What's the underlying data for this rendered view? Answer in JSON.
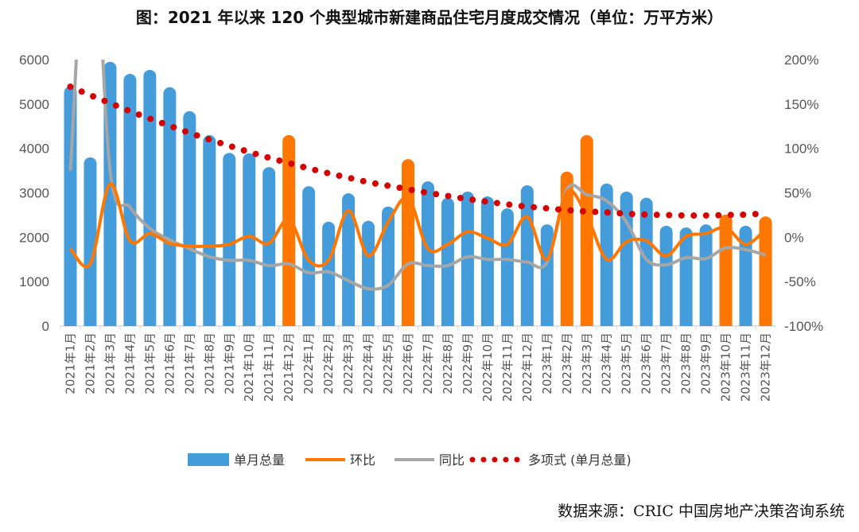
{
  "chart_data": {
    "type": "bar",
    "title": "图：2021 年以来 120 个典型城市新建商品住宅月度成交情况（单位：万平方米）",
    "categories": [
      "2021年1月",
      "2021年2月",
      "2021年3月",
      "2021年4月",
      "2021年5月",
      "2021年6月",
      "2021年7月",
      "2021年8月",
      "2021年9月",
      "2021年10月",
      "2021年11月",
      "2021年12月",
      "2022年1月",
      "2022年2月",
      "2022年3月",
      "2022年4月",
      "2022年5月",
      "2022年6月",
      "2022年7月",
      "2022年8月",
      "2022年9月",
      "2022年10月",
      "2022年11月",
      "2022年12月",
      "2023年1月",
      "2023年2月",
      "2023年3月",
      "2023年4月",
      "2023年5月",
      "2023年6月",
      "2023年7月",
      "2023年8月",
      "2023年9月",
      "2023年10月",
      "2023年11月",
      "2023年12月"
    ],
    "left_axis": {
      "ylim": [
        0,
        6000
      ],
      "ticks": [
        "0",
        "1000",
        "2000",
        "3000",
        "4000",
        "5000",
        "6000"
      ]
    },
    "right_axis": {
      "ylim": [
        -100,
        200
      ],
      "ticks": [
        "-100%",
        "-50%",
        "0%",
        "50%",
        "100%",
        "150%",
        "200%"
      ]
    },
    "highlighted_indices": [
      11,
      17,
      25,
      26,
      33,
      35
    ],
    "colors": {
      "bar": "#459cdb",
      "highlight": "#ff7700",
      "mom": "#ff7700",
      "yoy": "#a6a6a6",
      "trend": "#d40000"
    },
    "series": [
      {
        "name": "单月总量",
        "type": "bar",
        "axis": "left",
        "values": [
          5400,
          3800,
          5950,
          5680,
          5770,
          5380,
          4840,
          4300,
          3900,
          3890,
          3580,
          4300,
          3150,
          2350,
          2990,
          2370,
          2690,
          3760,
          3260,
          2890,
          3030,
          2920,
          2650,
          3170,
          2290,
          3480,
          4300,
          3210,
          3030,
          2890,
          2260,
          2220,
          2290,
          2510,
          2260,
          2470
        ]
      },
      {
        "name": "环比",
        "type": "line",
        "axis": "right",
        "values": [
          -13,
          -30,
          60,
          -4,
          4,
          -7,
          -10,
          -10,
          -8,
          1,
          -7,
          20,
          -26,
          -26,
          30,
          -21,
          17,
          44,
          -13,
          -8,
          6,
          -1,
          -8,
          23,
          -25,
          51,
          24,
          -25,
          -5,
          -4,
          -21,
          1,
          4,
          11,
          -8,
          9
        ]
      },
      {
        "name": "同比",
        "type": "line",
        "axis": "right",
        "values": [
          75,
          400,
          75,
          34,
          10,
          -3,
          -13,
          -22,
          -26,
          -26,
          -32,
          -30,
          -40,
          -39,
          -49,
          -58,
          -54,
          -30,
          -32,
          -32,
          -22,
          -25,
          -25,
          -28,
          -28,
          54,
          48,
          41,
          17,
          -25,
          -31,
          -23,
          -24,
          -12,
          -14,
          -20
        ]
      },
      {
        "name": "多项式 (单月总量)",
        "type": "trend",
        "axis": "left",
        "values": [
          5390,
          5200,
          5020,
          4840,
          4670,
          4510,
          4350,
          4200,
          4060,
          3920,
          3790,
          3670,
          3550,
          3440,
          3340,
          3240,
          3160,
          3080,
          3000,
          2930,
          2860,
          2800,
          2740,
          2690,
          2650,
          2610,
          2580,
          2560,
          2530,
          2510,
          2500,
          2490,
          2490,
          2500,
          2510,
          2540
        ]
      }
    ],
    "legend_placement": "bottom"
  },
  "source": "数据来源：CRIC 中国房地产决策咨询系统"
}
